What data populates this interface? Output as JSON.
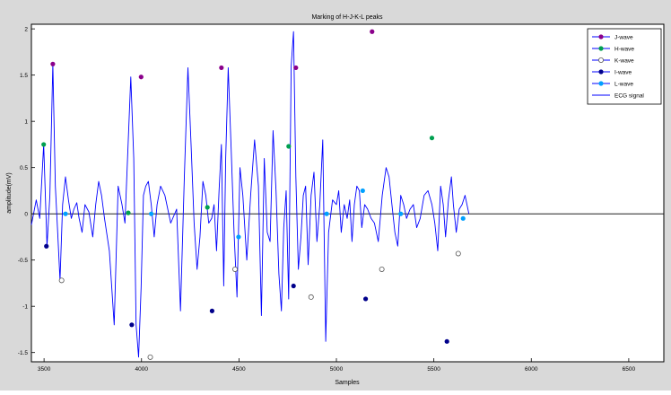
{
  "chart_data": {
    "type": "line",
    "title": "Marking of H-J-K-L peaks",
    "xlabel": "Samples",
    "ylabel": "amplitude(mV)",
    "xlim": [
      3435,
      6680
    ],
    "ylim": [
      -1.6,
      2.05
    ],
    "xticks": [
      3500,
      4000,
      4500,
      5000,
      5500,
      6000,
      6500
    ],
    "yticks": [
      -1.5,
      -1,
      -0.5,
      0,
      0.5,
      1,
      1.5,
      2
    ],
    "grid": false,
    "legend_position": "top-right",
    "colors": {
      "signal": "#0000ff",
      "j": "#8b008b",
      "h": "#00a050",
      "k": "#ffffff",
      "i": "#00008b",
      "l": "#00a0ff",
      "axes_bg": "#ffffff",
      "figure_bg": "#d9d9d9"
    },
    "legend": [
      "J-wave",
      "H-wave",
      "K-wave",
      "I-wave",
      "L-wave",
      "ECG signal"
    ],
    "signal": {
      "name": "ECG signal",
      "x": [
        3435,
        3460,
        3478,
        3498,
        3515,
        3530,
        3545,
        3558,
        3570,
        3582,
        3595,
        3610,
        3625,
        3640,
        3653,
        3668,
        3680,
        3695,
        3710,
        3730,
        3750,
        3765,
        3780,
        3795,
        3810,
        3835,
        3860,
        3880,
        3900,
        3915,
        3932,
        3945,
        3960,
        3972,
        3985,
        3998,
        4010,
        4022,
        4035,
        4050,
        4065,
        4080,
        4098,
        4120,
        4150,
        4180,
        4200,
        4220,
        4238,
        4255,
        4270,
        4285,
        4300,
        4315,
        4330,
        4345,
        4360,
        4372,
        4385,
        4398,
        4410,
        4422,
        4432,
        4445,
        4460,
        4475,
        4490,
        4505,
        4520,
        4540,
        4560,
        4580,
        4600,
        4615,
        4630,
        4645,
        4660,
        4675,
        4690,
        4705,
        4718,
        4730,
        4742,
        4755,
        4768,
        4780,
        4792,
        4805,
        4818,
        4830,
        4842,
        4855,
        4870,
        4885,
        4900,
        4915,
        4930,
        4945,
        4960,
        4980,
        5000,
        5012,
        5025,
        5040,
        5055,
        5068,
        5080,
        5092,
        5105,
        5118,
        5130,
        5145,
        5160,
        5178,
        5195,
        5215,
        5235,
        5255,
        5270,
        5285,
        5300,
        5315,
        5330,
        5345,
        5360,
        5378,
        5395,
        5412,
        5430,
        5450,
        5470,
        5490,
        5505,
        5520,
        5535,
        5548,
        5560,
        5575,
        5590,
        5600,
        5615,
        5630,
        5645,
        5660,
        5680
      ],
      "y": [
        -0.12,
        0.15,
        -0.05,
        0.75,
        -0.35,
        0.2,
        1.62,
        0.3,
        -0.2,
        -0.72,
        0.1,
        0.4,
        0.15,
        -0.05,
        0.05,
        0.12,
        -0.05,
        -0.2,
        0.1,
        0.02,
        -0.25,
        0.1,
        0.35,
        0.2,
        -0.05,
        -0.4,
        -1.2,
        0.3,
        0.1,
        -0.1,
        0.8,
        1.48,
        0.6,
        -1.2,
        -1.55,
        -0.8,
        0.2,
        0.3,
        0.35,
        0.1,
        -0.25,
        0.1,
        0.3,
        0.2,
        -0.1,
        0.05,
        -1.05,
        0.4,
        1.58,
        0.7,
        -0.1,
        -0.6,
        -0.25,
        0.35,
        0.2,
        -0.1,
        -0.05,
        0.1,
        -0.4,
        0.25,
        0.75,
        -0.78,
        0.6,
        1.58,
        0.7,
        -0.2,
        -0.9,
        0.5,
        0.2,
        -0.5,
        0.2,
        0.8,
        0.3,
        -1.1,
        0.6,
        -0.2,
        -0.3,
        0.9,
        0.25,
        -0.65,
        -1.05,
        -0.15,
        0.25,
        -0.92,
        1.6,
        1.97,
        0.4,
        -0.6,
        -0.25,
        0.2,
        0.3,
        -0.55,
        0.2,
        0.45,
        -0.3,
        0.1,
        0.8,
        -1.38,
        -0.2,
        0.15,
        0.1,
        0.25,
        -0.2,
        0.1,
        -0.05,
        0.15,
        -0.3,
        0.1,
        0.3,
        0.25,
        -0.15,
        0.1,
        0.05,
        -0.05,
        -0.1,
        -0.3,
        0.2,
        0.5,
        0.4,
        0.1,
        -0.2,
        -0.35,
        0.2,
        0.1,
        -0.05,
        0.05,
        0.1,
        -0.15,
        -0.05,
        0.2,
        0.25,
        0.1,
        -0.1,
        -0.4,
        0.3,
        0.1,
        -0.25,
        0.15,
        0.4,
        0.1,
        -0.2,
        0.05,
        0.1,
        0.2,
        0.0
      ]
    },
    "markers": {
      "J-wave": {
        "x": [
          3545,
          3998,
          4410,
          4792,
          5183
        ],
        "y": [
          1.62,
          1.48,
          1.58,
          1.58,
          1.97
        ]
      },
      "H-wave": {
        "x": [
          3498,
          3932,
          4338,
          4755,
          5490
        ],
        "y": [
          0.75,
          0.01,
          0.07,
          0.73,
          0.82
        ]
      },
      "K-wave": {
        "x": [
          3590,
          4045,
          4480,
          4870,
          5233,
          5625
        ],
        "y": [
          -0.72,
          -1.55,
          -0.6,
          -0.9,
          -0.6,
          -0.43
        ]
      },
      "I-wave": {
        "x": [
          3512,
          3950,
          4362,
          4780,
          5150,
          5567
        ],
        "y": [
          -0.35,
          -1.2,
          -1.05,
          -0.78,
          -0.92,
          -1.38
        ]
      },
      "L-wave": {
        "x": [
          3610,
          4050,
          4498,
          4950,
          5135,
          5330,
          5650
        ],
        "y": [
          0.0,
          0.0,
          -0.25,
          0.0,
          0.25,
          0.0,
          -0.05
        ]
      }
    }
  }
}
